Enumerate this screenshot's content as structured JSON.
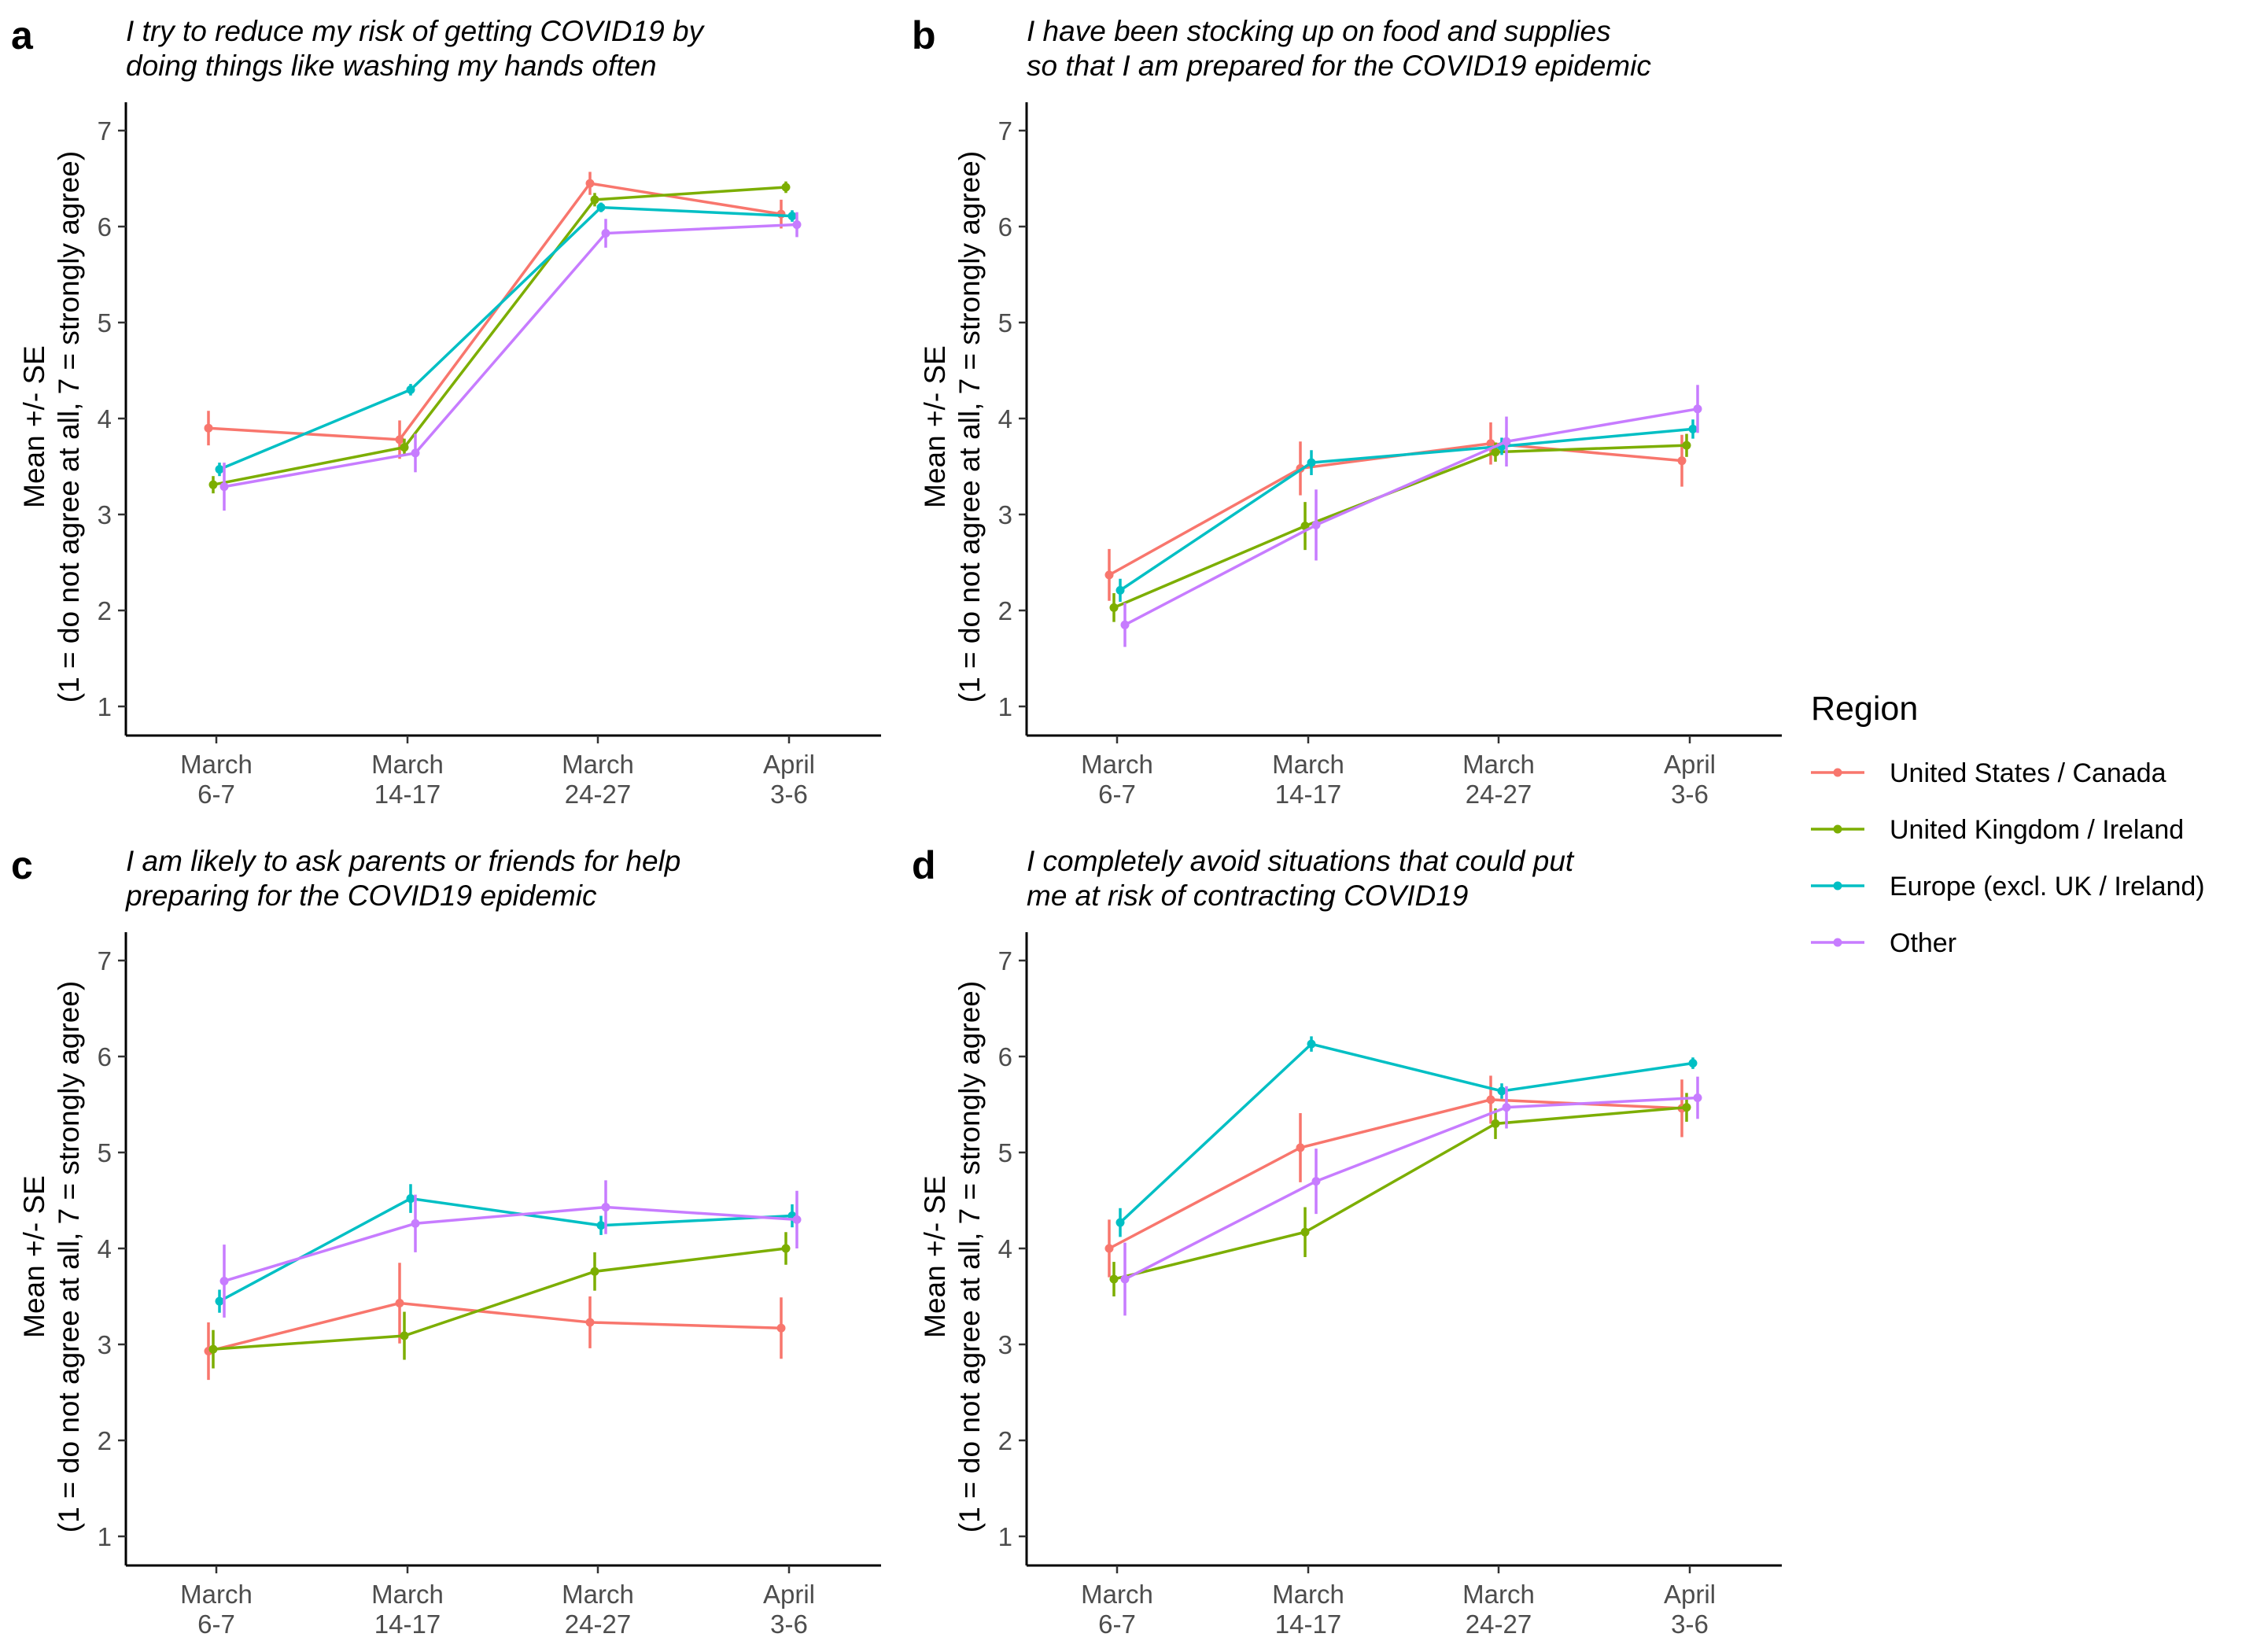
{
  "chart_data": {
    "type": "line",
    "legend": {
      "title": "Region",
      "placement": "right",
      "entries": [
        {
          "name": "United States / Canada",
          "color": "#F8766D"
        },
        {
          "name": "United Kingdom / Ireland",
          "color": "#7CAE00"
        },
        {
          "name": "Europe (excl. UK / Ireland)",
          "color": "#00BFC4"
        },
        {
          "name": "Other",
          "color": "#C77CFF"
        }
      ]
    },
    "x_categories": [
      [
        "March",
        "6-7"
      ],
      [
        "March",
        "14-17"
      ],
      [
        "March",
        "24-27"
      ],
      [
        "April",
        "3-6"
      ]
    ],
    "y_ticks": [
      "1",
      "2",
      "3",
      "4",
      "5",
      "6",
      "7"
    ],
    "ylim": [
      1,
      7
    ],
    "ylabel": [
      "Mean +/- SE",
      "(1 = do not agree at all, 7 = strongly agree)"
    ],
    "grid": false,
    "panels": [
      {
        "label": "a",
        "title": [
          "I try to reduce my risk of getting COVID19 by",
          "doing things like washing my hands often"
        ],
        "series": [
          {
            "name": "United States / Canada",
            "values": [
              3.9,
              3.78,
              6.45,
              6.13
            ],
            "se": [
              0.18,
              0.2,
              0.12,
              0.15
            ]
          },
          {
            "name": "United Kingdom / Ireland",
            "values": [
              3.31,
              3.7,
              6.28,
              6.41
            ],
            "se": [
              0.09,
              0.09,
              0.07,
              0.06
            ]
          },
          {
            "name": "Europe (excl. UK / Ireland)",
            "values": [
              3.47,
              4.3,
              6.2,
              6.11
            ],
            "se": [
              0.07,
              0.06,
              0.05,
              0.06
            ]
          },
          {
            "name": "Other",
            "values": [
              3.29,
              3.64,
              5.93,
              6.02
            ],
            "se": [
              0.25,
              0.2,
              0.15,
              0.13
            ]
          }
        ]
      },
      {
        "label": "b",
        "title": [
          "I have been stocking up on food and supplies",
          "so that I am prepared for the COVID19 epidemic"
        ],
        "series": [
          {
            "name": "United States / Canada",
            "values": [
              2.37,
              3.48,
              3.74,
              3.56
            ],
            "se": [
              0.27,
              0.28,
              0.22,
              0.27
            ]
          },
          {
            "name": "United Kingdom / Ireland",
            "values": [
              2.03,
              2.88,
              3.65,
              3.72
            ],
            "se": [
              0.15,
              0.25,
              0.1,
              0.12
            ]
          },
          {
            "name": "Europe (excl. UK / Ireland)",
            "values": [
              2.21,
              3.54,
              3.71,
              3.89
            ],
            "se": [
              0.12,
              0.13,
              0.09,
              0.1
            ]
          },
          {
            "name": "Other",
            "values": [
              1.85,
              2.89,
              3.76,
              4.1
            ],
            "se": [
              0.23,
              0.37,
              0.26,
              0.25
            ]
          }
        ]
      },
      {
        "label": "c",
        "title": [
          "I am likely to ask parents or friends for help",
          "preparing for the COVID19 epidemic"
        ],
        "series": [
          {
            "name": "United States / Canada",
            "values": [
              2.93,
              3.43,
              3.23,
              3.17
            ],
            "se": [
              0.3,
              0.42,
              0.27,
              0.32
            ]
          },
          {
            "name": "United Kingdom / Ireland",
            "values": [
              2.95,
              3.09,
              3.76,
              4.0
            ],
            "se": [
              0.2,
              0.25,
              0.2,
              0.17
            ]
          },
          {
            "name": "Europe (excl. UK / Ireland)",
            "values": [
              3.45,
              4.52,
              4.24,
              4.34
            ],
            "se": [
              0.12,
              0.15,
              0.1,
              0.12
            ]
          },
          {
            "name": "Other",
            "values": [
              3.66,
              4.26,
              4.43,
              4.3
            ],
            "se": [
              0.38,
              0.3,
              0.28,
              0.3
            ]
          }
        ]
      },
      {
        "label": "d",
        "title": [
          "I completely avoid situations that could put",
          "me at risk of contracting COVID19"
        ],
        "series": [
          {
            "name": "United States / Canada",
            "values": [
              4.0,
              5.05,
              5.55,
              5.46
            ],
            "se": [
              0.3,
              0.36,
              0.25,
              0.3
            ]
          },
          {
            "name": "United Kingdom / Ireland",
            "values": [
              3.68,
              4.17,
              5.3,
              5.47
            ],
            "se": [
              0.18,
              0.26,
              0.16,
              0.15
            ]
          },
          {
            "name": "Europe (excl. UK / Ireland)",
            "values": [
              4.27,
              6.13,
              5.64,
              5.93
            ],
            "se": [
              0.15,
              0.08,
              0.08,
              0.06
            ]
          },
          {
            "name": "Other",
            "values": [
              3.68,
              4.7,
              5.47,
              5.57
            ],
            "se": [
              0.38,
              0.34,
              0.22,
              0.22
            ]
          }
        ]
      }
    ]
  }
}
